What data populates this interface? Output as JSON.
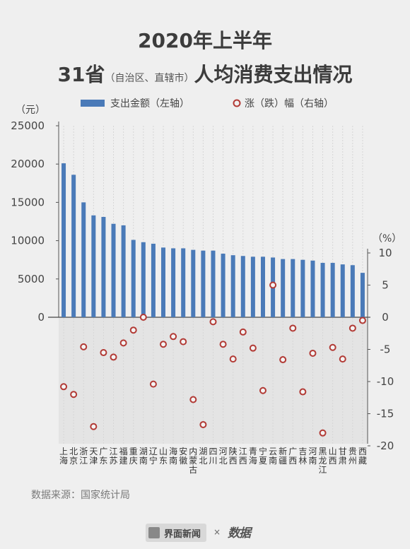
{
  "title": {
    "line1": "2020年上半年",
    "line2_main1": "31省",
    "line2_small": "（自治区、直辖市）",
    "line2_main2": "人均消费支出情况"
  },
  "colors": {
    "bar": "#4a7ab8",
    "marker": "#b23a35",
    "grid": "#d6d6d6",
    "neg_bg": "#e4e4e4"
  },
  "source": "数据来源：国家统计局",
  "footer": {
    "brand1": "界面新闻",
    "times": "×",
    "brand2": "数据"
  },
  "chart_data": {
    "type": "bar",
    "categories": [
      "上海",
      "北京",
      "浙江",
      "天津",
      "广东",
      "江苏",
      "福建",
      "重庆",
      "湖南",
      "辽宁",
      "山东",
      "海南",
      "安徽",
      "内蒙古",
      "湖北",
      "四川",
      "河北",
      "陕西",
      "江西",
      "青海",
      "宁夏",
      "云南",
      "新疆",
      "广西",
      "吉林",
      "河南",
      "黑龙江",
      "山西",
      "甘肃",
      "贵州",
      "西藏"
    ],
    "category_labels": [
      "上\n海",
      "北\n京",
      "浙\n江",
      "天\n津",
      "广\n东",
      "江\n苏",
      "福\n建",
      "重\n庆",
      "湖\n南",
      "辽\n宁",
      "山\n东",
      "海\n南",
      "安\n徽",
      "内\n蒙\n古",
      "湖\n北",
      "四\n川",
      "河\n北",
      "陕\n西",
      "江\n西",
      "青\n海",
      "宁\n夏",
      "云\n南",
      "新\n疆",
      "广\n西",
      "吉\n林",
      "河\n南",
      "黑\n龙\n江",
      "山\n西",
      "甘\n肃",
      "贵\n州",
      "西\n藏"
    ],
    "series": [
      {
        "name": "支出金额（左轴）",
        "type": "bar",
        "axis": "left",
        "values": [
          20100,
          18600,
          15000,
          13300,
          13100,
          12200,
          12000,
          10100,
          9800,
          9600,
          9100,
          9000,
          9000,
          8800,
          8700,
          8700,
          8300,
          8100,
          8000,
          7900,
          7900,
          7800,
          7600,
          7600,
          7500,
          7400,
          7100,
          7100,
          6900,
          6800,
          5800
        ]
      },
      {
        "name": "涨（跌）幅（右轴）",
        "type": "scatter",
        "axis": "right",
        "values": [
          -10.8,
          -12.0,
          -4.6,
          -17.0,
          -5.5,
          -6.2,
          -4.0,
          -2.0,
          0.0,
          -10.4,
          -4.2,
          -3.0,
          -3.8,
          -12.8,
          -16.7,
          -0.7,
          -4.2,
          -6.5,
          -2.3,
          -4.8,
          -11.4,
          5.0,
          -6.6,
          -1.7,
          -11.6,
          -5.6,
          -18.0,
          -4.7,
          -6.5,
          -1.7,
          -0.5
        ]
      }
    ],
    "y_left": {
      "label": "（元）",
      "ticks": [
        25000,
        20000,
        15000,
        10000,
        5000,
        0
      ],
      "range": [
        -16667,
        25000
      ]
    },
    "y_right": {
      "label": "（%）",
      "ticks": [
        10,
        5,
        0,
        -5,
        -10,
        -15,
        -20
      ],
      "range": [
        -20,
        15
      ]
    },
    "legend": [
      "支出金额（左轴）",
      "涨（跌）幅（右轴）"
    ]
  }
}
